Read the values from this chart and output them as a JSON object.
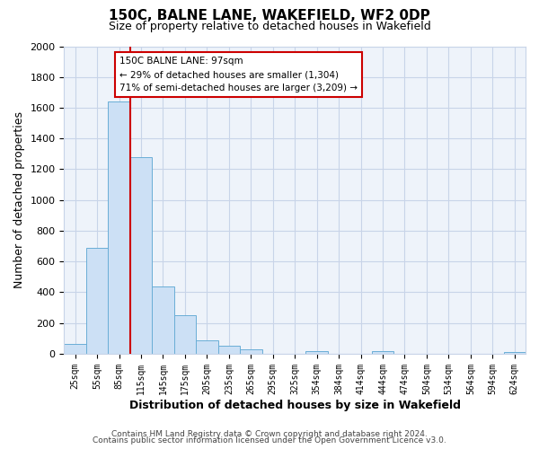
{
  "title": "150C, BALNE LANE, WAKEFIELD, WF2 0DP",
  "subtitle": "Size of property relative to detached houses in Wakefield",
  "xlabel": "Distribution of detached houses by size in Wakefield",
  "ylabel": "Number of detached properties",
  "bar_labels": [
    "25sqm",
    "55sqm",
    "85sqm",
    "115sqm",
    "145sqm",
    "175sqm",
    "205sqm",
    "235sqm",
    "265sqm",
    "295sqm",
    "325sqm",
    "354sqm",
    "384sqm",
    "414sqm",
    "444sqm",
    "474sqm",
    "504sqm",
    "534sqm",
    "564sqm",
    "594sqm",
    "624sqm"
  ],
  "bar_values": [
    65,
    690,
    1640,
    1280,
    435,
    250,
    90,
    52,
    30,
    0,
    0,
    20,
    0,
    0,
    15,
    0,
    0,
    0,
    0,
    0,
    10
  ],
  "bar_color": "#cce0f5",
  "bar_edge_color": "#6aaed6",
  "vline_color": "#cc0000",
  "annotation_title": "150C BALNE LANE: 97sqm",
  "annotation_line1": "← 29% of detached houses are smaller (1,304)",
  "annotation_line2": "71% of semi-detached houses are larger (3,209) →",
  "annotation_box_facecolor": "#ffffff",
  "annotation_box_edgecolor": "#cc0000",
  "ylim": [
    0,
    2000
  ],
  "yticks": [
    0,
    200,
    400,
    600,
    800,
    1000,
    1200,
    1400,
    1600,
    1800,
    2000
  ],
  "footer_line1": "Contains HM Land Registry data © Crown copyright and database right 2024.",
  "footer_line2": "Contains public sector information licensed under the Open Government Licence v3.0.",
  "bg_color": "#ffffff",
  "plot_bg_color": "#eef3fa",
  "grid_color": "#c8d4e8"
}
